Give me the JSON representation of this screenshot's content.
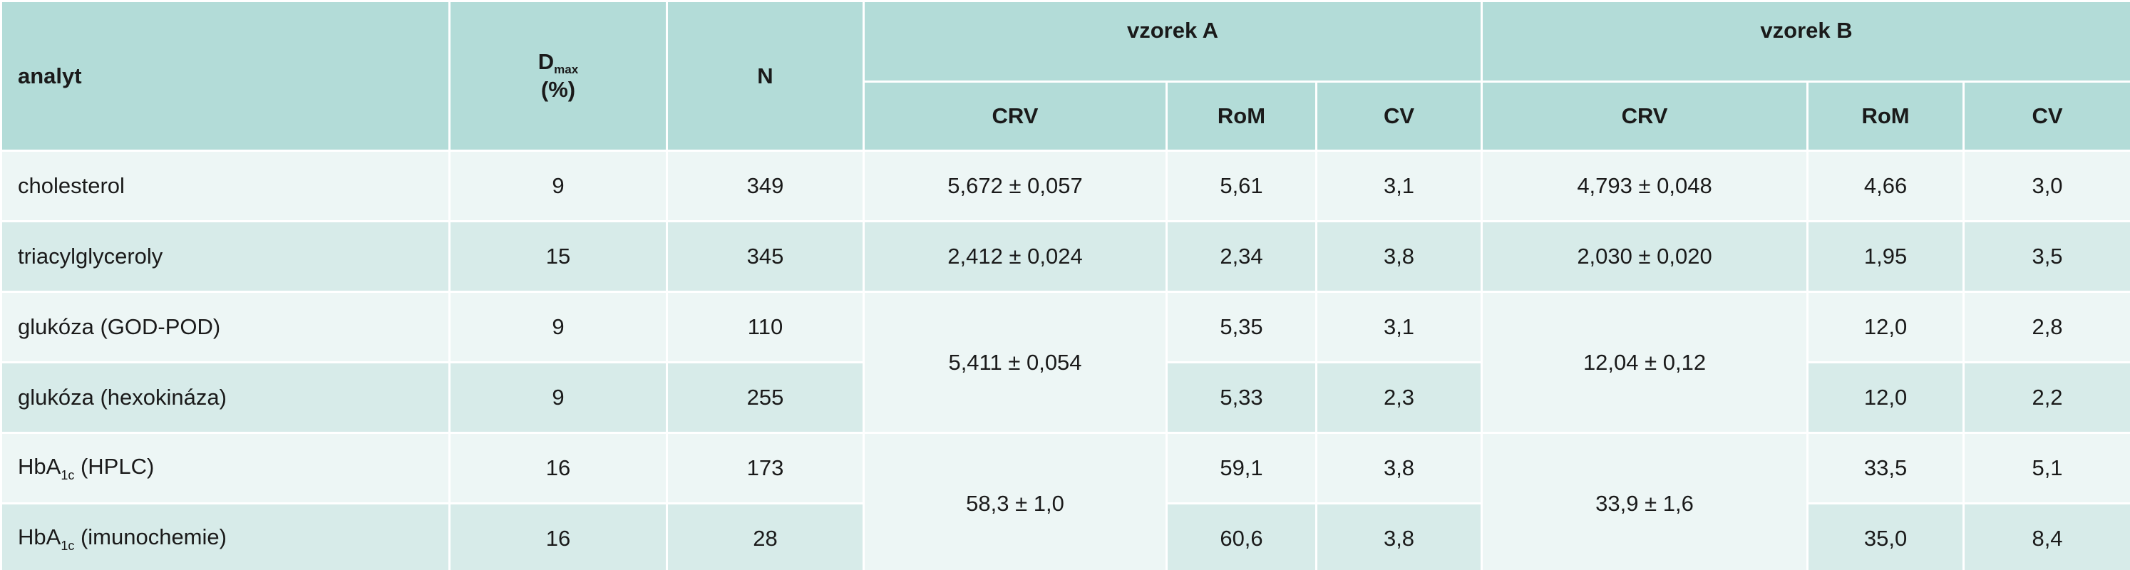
{
  "table": {
    "header": {
      "analyte": "analyt",
      "dmax": {
        "symbol": "D",
        "sub": "max",
        "unit": "(%)"
      },
      "n": "N",
      "groups": [
        "vzorek A",
        "vzorek B"
      ],
      "columns": [
        "CRV",
        "RoM",
        "CV",
        "CRV",
        "RoM",
        "CV"
      ]
    },
    "rows": [
      [
        "cholesterol",
        "9",
        "349",
        "5,672 ± 0,057",
        "5,61",
        "3,1",
        "4,793 ± 0,048",
        "4,66",
        "3,0"
      ],
      [
        "triacylglyceroly",
        "15",
        "345",
        "2,412 ± 0,024",
        "2,34",
        "3,8",
        "2,030 ± 0,020",
        "1,95",
        "3,5"
      ],
      [
        "glukóza (GOD-POD)",
        "9",
        "110",
        "5,411 ± 0,054",
        "5,35",
        "3,1",
        "12,04 ± 0,12",
        "12,0",
        "2,8"
      ],
      [
        "glukóza (hexokináza)",
        "9",
        "255",
        "5,33",
        "2,3",
        "12,0",
        "2,2"
      ],
      [
        {
          "text": "HbA",
          "sub": "1c",
          "rest": " (HPLC)"
        },
        "16",
        "173",
        "58,3 ± 1,0",
        "59,1",
        "3,8",
        "33,9 ± 1,6",
        "33,5",
        "5,1"
      ],
      [
        {
          "text": "HbA",
          "sub": "1c",
          "rest": " (imunochemie)"
        },
        "16",
        "28",
        "60,6",
        "3,8",
        "35,0",
        "8,4"
      ]
    ]
  }
}
